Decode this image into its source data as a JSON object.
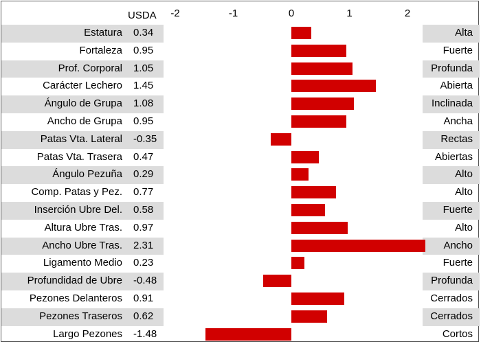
{
  "header": {
    "usda_label": "USDA"
  },
  "chart_data": {
    "type": "bar",
    "orientation": "horizontal",
    "value_column_label": "USDA",
    "xlim": [
      -2.0,
      2.4
    ],
    "ticks": [
      -2,
      -1,
      0,
      1,
      2
    ],
    "tick_labels": [
      "-2",
      "-1",
      "0",
      "1",
      "2"
    ],
    "bar_color": "#d10000",
    "grid": false,
    "rows": [
      {
        "trait": "Estatura",
        "value": 0.34,
        "value_label": "0.34",
        "descriptor": "Alta"
      },
      {
        "trait": "Fortaleza",
        "value": 0.95,
        "value_label": "0.95",
        "descriptor": "Fuerte"
      },
      {
        "trait": "Prof. Corporal",
        "value": 1.05,
        "value_label": "1.05",
        "descriptor": "Profunda"
      },
      {
        "trait": "Carácter Lechero",
        "value": 1.45,
        "value_label": "1.45",
        "descriptor": "Abierta"
      },
      {
        "trait": "Ángulo de Grupa",
        "value": 1.08,
        "value_label": "1.08",
        "descriptor": "Inclinada"
      },
      {
        "trait": "Ancho de Grupa",
        "value": 0.95,
        "value_label": "0.95",
        "descriptor": "Ancha"
      },
      {
        "trait": "Patas Vta. Lateral",
        "value": -0.35,
        "value_label": "-0.35",
        "descriptor": "Rectas"
      },
      {
        "trait": "Patas Vta. Trasera",
        "value": 0.47,
        "value_label": "0.47",
        "descriptor": "Abiertas"
      },
      {
        "trait": "Ángulo Pezuña",
        "value": 0.29,
        "value_label": "0.29",
        "descriptor": "Alto"
      },
      {
        "trait": "Comp. Patas y Pez.",
        "value": 0.77,
        "value_label": "0.77",
        "descriptor": "Alto"
      },
      {
        "trait": "Inserción Ubre Del.",
        "value": 0.58,
        "value_label": "0.58",
        "descriptor": "Fuerte"
      },
      {
        "trait": "Altura Ubre Tras.",
        "value": 0.97,
        "value_label": "0.97",
        "descriptor": "Alto"
      },
      {
        "trait": "Ancho Ubre Tras.",
        "value": 2.31,
        "value_label": "2.31",
        "descriptor": "Ancho"
      },
      {
        "trait": "Ligamento Medio",
        "value": 0.23,
        "value_label": "0.23",
        "descriptor": "Fuerte"
      },
      {
        "trait": "Profundidad de Ubre",
        "value": -0.48,
        "value_label": "-0.48",
        "descriptor": "Profunda"
      },
      {
        "trait": "Pezones Delanteros",
        "value": 0.91,
        "value_label": "0.91",
        "descriptor": "Cerrados"
      },
      {
        "trait": "Pezones Traseros",
        "value": 0.62,
        "value_label": "0.62",
        "descriptor": "Cerrados"
      },
      {
        "trait": "Largo Pezones",
        "value": -1.48,
        "value_label": "-1.48",
        "descriptor": "Cortos"
      }
    ]
  }
}
